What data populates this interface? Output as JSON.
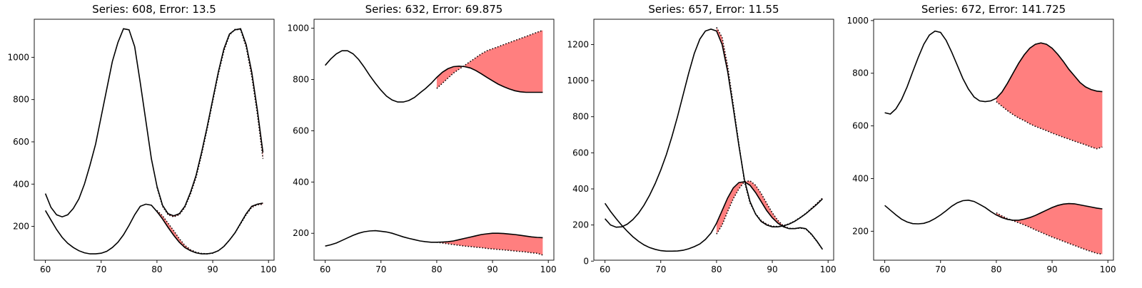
{
  "chart_data": [
    {
      "type": "line",
      "title": "Series: 608, Error: 13.5",
      "xlim": [
        58,
        101
      ],
      "ylim": [
        40,
        1180
      ],
      "xticks": [
        60,
        70,
        80,
        90,
        100
      ],
      "yticks": [
        200,
        400,
        600,
        800,
        1000
      ],
      "series": [
        {
          "role": "actual",
          "x": [
            60,
            61,
            62,
            63,
            64,
            65,
            66,
            67,
            68,
            69,
            70,
            71,
            72,
            73,
            74,
            75,
            76,
            77,
            78,
            79,
            80,
            81,
            82,
            83,
            84,
            85,
            86,
            87,
            88,
            89,
            90,
            91,
            92,
            93,
            94,
            95,
            96,
            97,
            98,
            99
          ],
          "y": [
            355,
            290,
            255,
            245,
            255,
            285,
            330,
            400,
            490,
            590,
            720,
            850,
            980,
            1070,
            1135,
            1130,
            1050,
            880,
            700,
            520,
            390,
            300,
            260,
            250,
            260,
            295,
            360,
            440,
            550,
            670,
            800,
            930,
            1040,
            1110,
            1130,
            1135,
            1060,
            930,
            750,
            550
          ]
        },
        {
          "role": "actual",
          "x": [
            60,
            61,
            62,
            63,
            64,
            65,
            66,
            67,
            68,
            69,
            70,
            71,
            72,
            73,
            74,
            75,
            76,
            77,
            78,
            79,
            80,
            81,
            82,
            83,
            84,
            85,
            86,
            87,
            88,
            89,
            90,
            91,
            92,
            93,
            94,
            95,
            96,
            97,
            98,
            99
          ],
          "y": [
            275,
            230,
            185,
            148,
            120,
            100,
            85,
            75,
            70,
            70,
            73,
            82,
            100,
            125,
            160,
            205,
            255,
            295,
            305,
            300,
            270,
            235,
            195,
            158,
            125,
            100,
            85,
            75,
            70,
            70,
            74,
            85,
            105,
            135,
            170,
            215,
            260,
            295,
            305,
            310
          ]
        },
        {
          "role": "forecast",
          "x": [
            80,
            81,
            82,
            83,
            84,
            85,
            86,
            87,
            88,
            89,
            90,
            91,
            92,
            93,
            94,
            95,
            96,
            97,
            98,
            99
          ],
          "y": [
            385,
            295,
            255,
            245,
            255,
            290,
            352,
            430,
            538,
            660,
            790,
            920,
            1030,
            1105,
            1132,
            1130,
            1048,
            910,
            730,
            520
          ]
        },
        {
          "role": "forecast",
          "x": [
            80,
            81,
            82,
            83,
            84,
            85,
            86,
            87,
            88,
            89,
            90,
            91,
            92,
            93,
            94,
            95,
            96,
            97,
            98,
            99
          ],
          "y": [
            275,
            250,
            215,
            180,
            142,
            110,
            90,
            78,
            72,
            70,
            73,
            85,
            105,
            135,
            170,
            212,
            255,
            290,
            302,
            305
          ]
        }
      ]
    },
    {
      "type": "line",
      "title": "Series: 632, Error: 69.875",
      "xlim": [
        58,
        101
      ],
      "ylim": [
        95,
        1035
      ],
      "xticks": [
        60,
        70,
        80,
        90,
        100
      ],
      "yticks": [
        200,
        400,
        600,
        800,
        1000
      ],
      "series": [
        {
          "role": "actual",
          "x": [
            60,
            61,
            62,
            63,
            64,
            65,
            66,
            67,
            68,
            69,
            70,
            71,
            72,
            73,
            74,
            75,
            76,
            77,
            78,
            79,
            80,
            81,
            82,
            83,
            84,
            85,
            86,
            87,
            88,
            89,
            90,
            91,
            92,
            93,
            94,
            95,
            96,
            97,
            98,
            99
          ],
          "y": [
            855,
            880,
            900,
            912,
            912,
            900,
            878,
            848,
            815,
            785,
            758,
            735,
            720,
            712,
            712,
            718,
            730,
            748,
            765,
            785,
            808,
            828,
            842,
            850,
            852,
            850,
            845,
            835,
            822,
            808,
            795,
            782,
            772,
            763,
            756,
            752,
            750,
            750,
            750,
            750
          ]
        },
        {
          "role": "actual",
          "x": [
            60,
            61,
            62,
            63,
            64,
            65,
            66,
            67,
            68,
            69,
            70,
            71,
            72,
            73,
            74,
            75,
            76,
            77,
            78,
            79,
            80,
            81,
            82,
            83,
            84,
            85,
            86,
            87,
            88,
            89,
            90,
            91,
            92,
            93,
            94,
            95,
            96,
            97,
            98,
            99
          ],
          "y": [
            150,
            155,
            162,
            172,
            182,
            192,
            200,
            206,
            209,
            210,
            208,
            205,
            200,
            193,
            186,
            180,
            175,
            170,
            167,
            165,
            165,
            166,
            167,
            170,
            175,
            180,
            185,
            190,
            195,
            198,
            200,
            200,
            199,
            197,
            195,
            192,
            189,
            186,
            184,
            183
          ]
        },
        {
          "role": "forecast",
          "x": [
            80,
            81,
            82,
            83,
            84,
            85,
            86,
            87,
            88,
            89,
            90,
            91,
            92,
            93,
            94,
            95,
            96,
            97,
            98,
            99
          ],
          "y": [
            765,
            785,
            805,
            825,
            840,
            855,
            870,
            885,
            900,
            912,
            920,
            928,
            936,
            944,
            952,
            960,
            968,
            976,
            984,
            992
          ]
        },
        {
          "role": "forecast",
          "x": [
            80,
            81,
            82,
            83,
            84,
            85,
            86,
            87,
            88,
            89,
            90,
            91,
            92,
            93,
            94,
            95,
            96,
            97,
            98,
            99
          ],
          "y": [
            165,
            162,
            159,
            156,
            153,
            150,
            148,
            146,
            144,
            141,
            139,
            137,
            135,
            133,
            131,
            129,
            127,
            124,
            122,
            115
          ]
        }
      ]
    },
    {
      "type": "line",
      "title": "Series: 657, Error: 11.55",
      "xlim": [
        58,
        101
      ],
      "ylim": [
        5,
        1340
      ],
      "xticks": [
        60,
        70,
        80,
        90,
        100
      ],
      "yticks": [
        0,
        200,
        400,
        600,
        800,
        1000,
        1200
      ],
      "series": [
        {
          "role": "actual",
          "x": [
            60,
            61,
            62,
            63,
            64,
            65,
            66,
            67,
            68,
            69,
            70,
            71,
            72,
            73,
            74,
            75,
            76,
            77,
            78,
            79,
            80,
            81,
            82,
            83,
            84,
            85,
            86,
            87,
            88,
            89,
            90,
            91,
            92,
            93,
            94,
            95,
            96,
            97,
            98,
            99
          ],
          "y": [
            235,
            200,
            188,
            190,
            205,
            230,
            265,
            310,
            365,
            430,
            505,
            590,
            690,
            800,
            920,
            1040,
            1150,
            1230,
            1275,
            1285,
            1275,
            1200,
            1050,
            850,
            640,
            450,
            330,
            260,
            220,
            200,
            190,
            190,
            195,
            205,
            220,
            240,
            262,
            288,
            315,
            345
          ]
        },
        {
          "role": "actual",
          "x": [
            60,
            61,
            62,
            63,
            64,
            65,
            66,
            67,
            68,
            69,
            70,
            71,
            72,
            73,
            74,
            75,
            76,
            77,
            78,
            79,
            80,
            81,
            82,
            83,
            84,
            85,
            86,
            87,
            88,
            89,
            90,
            91,
            92,
            93,
            94,
            95,
            96,
            97,
            98,
            99
          ],
          "y": [
            320,
            275,
            235,
            198,
            165,
            135,
            110,
            90,
            75,
            65,
            58,
            55,
            55,
            56,
            60,
            68,
            80,
            95,
            120,
            155,
            210,
            280,
            350,
            405,
            435,
            440,
            420,
            380,
            330,
            280,
            240,
            210,
            190,
            180,
            180,
            185,
            180,
            150,
            110,
            65
          ]
        },
        {
          "role": "forecast",
          "x": [
            80,
            81,
            82,
            83,
            84,
            85,
            86,
            87,
            88,
            89,
            90,
            91,
            92,
            93,
            94,
            95,
            96,
            97,
            98,
            99
          ],
          "y": [
            1295,
            1240,
            1080,
            870,
            650,
            440,
            322,
            262,
            225,
            205,
            193,
            192,
            197,
            207,
            222,
            242,
            264,
            292,
            320,
            350
          ]
        },
        {
          "role": "forecast",
          "x": [
            80,
            81,
            82,
            83,
            84,
            85,
            86,
            87,
            88,
            89,
            90,
            91,
            92,
            93,
            94,
            95,
            96,
            97,
            98,
            99
          ],
          "y": [
            150,
            200,
            275,
            345,
            400,
            440,
            445,
            420,
            375,
            320,
            268,
            225,
            195,
            182,
            180,
            183,
            178,
            148,
            108,
            65
          ]
        }
      ]
    },
    {
      "type": "line",
      "title": "Series: 672, Error: 141.725",
      "xlim": [
        58,
        101
      ],
      "ylim": [
        90,
        1005
      ],
      "xticks": [
        60,
        70,
        80,
        90,
        100
      ],
      "yticks": [
        200,
        400,
        600,
        800,
        1000
      ],
      "series": [
        {
          "role": "actual",
          "x": [
            60,
            61,
            62,
            63,
            64,
            65,
            66,
            67,
            68,
            69,
            70,
            71,
            72,
            73,
            74,
            75,
            76,
            77,
            78,
            79,
            80,
            81,
            82,
            83,
            84,
            85,
            86,
            87,
            88,
            89,
            90,
            91,
            92,
            93,
            94,
            95,
            96,
            97,
            98,
            99
          ],
          "y": [
            650,
            645,
            665,
            700,
            748,
            805,
            860,
            910,
            945,
            960,
            955,
            925,
            880,
            830,
            780,
            740,
            710,
            695,
            692,
            695,
            705,
            728,
            762,
            800,
            838,
            870,
            895,
            910,
            915,
            910,
            895,
            872,
            845,
            815,
            790,
            765,
            748,
            738,
            732,
            730
          ]
        },
        {
          "role": "actual",
          "x": [
            60,
            61,
            62,
            63,
            64,
            65,
            66,
            67,
            68,
            69,
            70,
            71,
            72,
            73,
            74,
            75,
            76,
            77,
            78,
            79,
            80,
            81,
            82,
            83,
            84,
            85,
            86,
            87,
            88,
            89,
            90,
            91,
            92,
            93,
            94,
            95,
            96,
            97,
            98,
            99
          ],
          "y": [
            298,
            280,
            262,
            246,
            235,
            229,
            228,
            230,
            237,
            248,
            262,
            278,
            295,
            308,
            316,
            318,
            313,
            302,
            290,
            275,
            262,
            252,
            245,
            242,
            242,
            246,
            252,
            260,
            270,
            280,
            290,
            298,
            303,
            305,
            304,
            300,
            296,
            292,
            288,
            285
          ]
        },
        {
          "role": "forecast",
          "x": [
            80,
            81,
            82,
            83,
            84,
            85,
            86,
            87,
            88,
            89,
            90,
            91,
            92,
            93,
            94,
            95,
            96,
            97,
            98,
            99
          ],
          "y": [
            692,
            675,
            658,
            643,
            630,
            620,
            608,
            598,
            590,
            582,
            573,
            565,
            557,
            550,
            542,
            535,
            528,
            520,
            513,
            520
          ]
        },
        {
          "role": "forecast",
          "x": [
            80,
            81,
            82,
            83,
            84,
            85,
            86,
            87,
            88,
            89,
            90,
            91,
            92,
            93,
            94,
            95,
            96,
            97,
            98,
            99
          ],
          "y": [
            270,
            258,
            248,
            240,
            232,
            224,
            215,
            205,
            196,
            187,
            178,
            170,
            162,
            154,
            146,
            138,
            130,
            123,
            116,
            113
          ]
        }
      ]
    }
  ]
}
